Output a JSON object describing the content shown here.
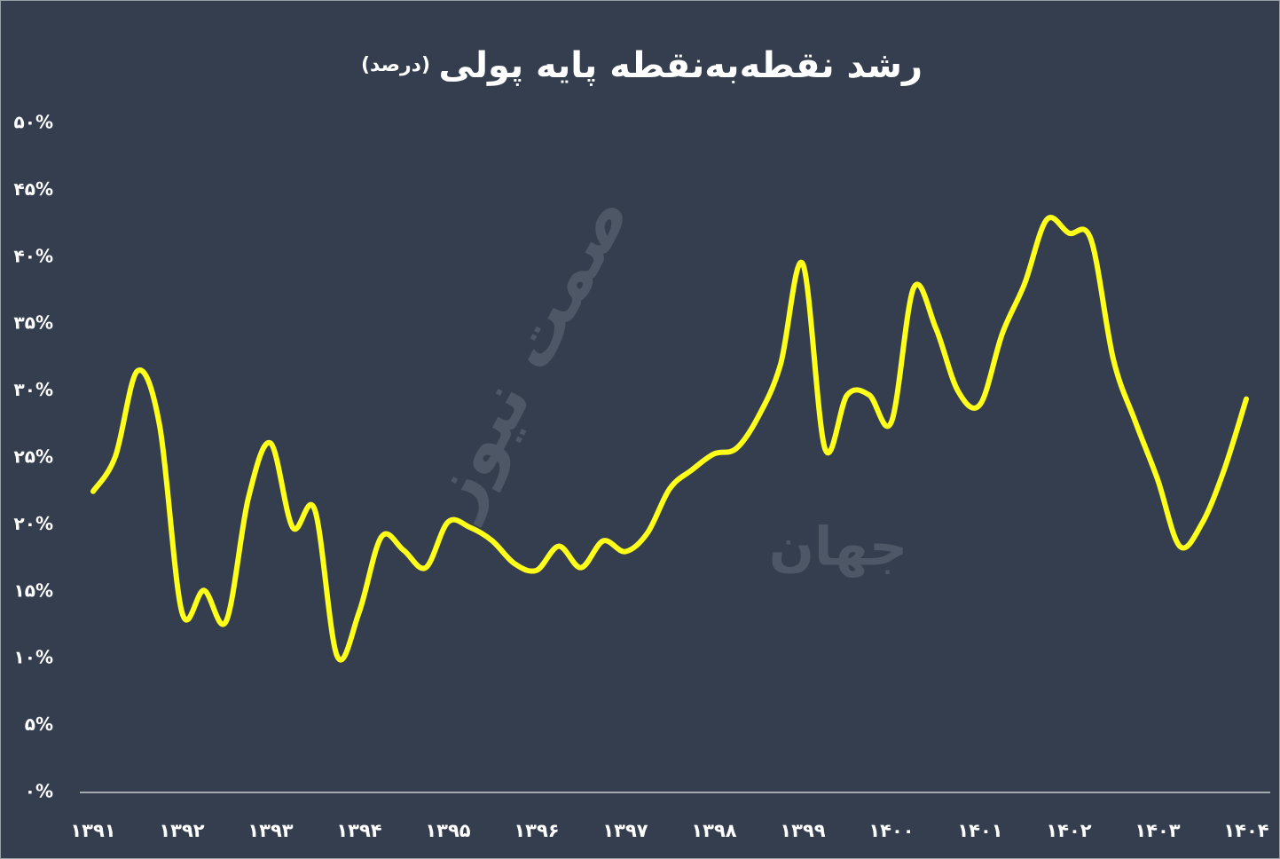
{
  "chart_data": {
    "type": "line",
    "title": "رشد نقطه‌به‌نقطه پایه پولی",
    "subtitle": "(درصد)",
    "watermark": [
      "صمت نیوز",
      "جهان"
    ],
    "categories": [
      "۱۳۹۱",
      null,
      null,
      null,
      "۱۳۹۲",
      null,
      null,
      null,
      "۱۳۹۳",
      null,
      null,
      null,
      "۱۳۹۴",
      null,
      null,
      null,
      "۱۳۹۵",
      null,
      null,
      null,
      "۱۳۹۶",
      null,
      null,
      null,
      "۱۳۹۷",
      null,
      null,
      null,
      "۱۳۹۸",
      null,
      null,
      null,
      "۱۳۹۹",
      null,
      null,
      null,
      "۱۴۰۰",
      null,
      null,
      null,
      "۱۴۰۱",
      null,
      null,
      null,
      "۱۴۰۲",
      null,
      null,
      null,
      "۱۴۰۳",
      null,
      null,
      null,
      "۱۴۰۴"
    ],
    "series": [
      {
        "color": "#ffff1a",
        "values": [
          22.5,
          25.1,
          31.5,
          27.4,
          13.5,
          15.1,
          12.8,
          22.0,
          26.1,
          19.8,
          21.1,
          10.2,
          13.5,
          19.1,
          18.1,
          16.8,
          20.2,
          19.8,
          18.8,
          17.1,
          16.6,
          18.4,
          16.8,
          18.8,
          18.0,
          19.4,
          22.7,
          24.1,
          25.3,
          25.7,
          28.1,
          32.0,
          39.5,
          25.7,
          29.7,
          29.7,
          27.7,
          37.7,
          34.7,
          30.0,
          29.0,
          34.3,
          38.0,
          42.8,
          41.8,
          41.3,
          32.4,
          27.7,
          23.4,
          18.4,
          20.1,
          24.1,
          29.4
        ]
      }
    ],
    "ylim": [
      0,
      50
    ],
    "yticks": [
      {
        "value": 0,
        "label": "۰%"
      },
      {
        "value": 5,
        "label": "۵%"
      },
      {
        "value": 10,
        "label": "۱۰%"
      },
      {
        "value": 15,
        "label": "۱۵%"
      },
      {
        "value": 20,
        "label": "۲۰%"
      },
      {
        "value": 25,
        "label": "۲۵%"
      },
      {
        "value": 30,
        "label": "۳۰%"
      },
      {
        "value": 35,
        "label": "۳۵%"
      },
      {
        "value": 40,
        "label": "۴۰%"
      },
      {
        "value": 45,
        "label": "۴۵%"
      },
      {
        "value": 50,
        "label": "۵۰%"
      }
    ],
    "grid": false
  }
}
